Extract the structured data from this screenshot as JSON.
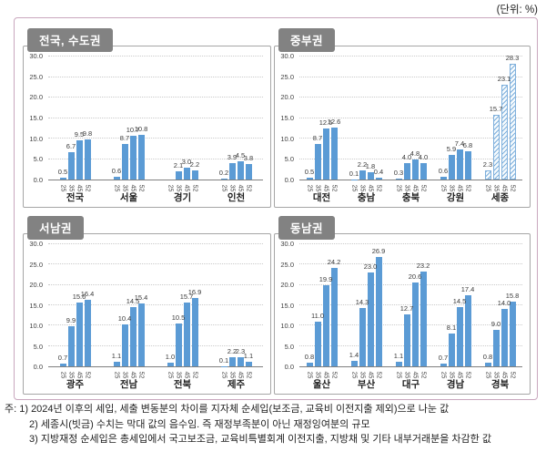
{
  "unit_label": "(단위: %)",
  "colors": {
    "bar": "#5B9BD5",
    "hatch_stripe": "#7FB0DC",
    "hatch_bg": "#F5FAFD",
    "tab_bg": "#828282",
    "frame_border": "#C9A7BE"
  },
  "axis": {
    "y_ticks": [
      "30.0",
      "25.0",
      "20.0",
      "15.0",
      "10.0",
      "5.0",
      "0.0"
    ],
    "y_max": 30,
    "x_categories": [
      "25",
      "35",
      "45",
      "52"
    ]
  },
  "chart_data": [
    {
      "type": "bar",
      "title": "전국, 수도권",
      "ylim": [
        0,
        30
      ],
      "categories": [
        "25",
        "35",
        "45",
        "52"
      ],
      "groups": [
        {
          "name": "전국",
          "values": [
            0.5,
            6.7,
            9.5,
            9.8
          ]
        },
        {
          "name": "서울",
          "values": [
            0.6,
            8.7,
            10.7,
            10.8
          ]
        },
        {
          "name": "경기",
          "values": [
            null,
            2.1,
            3.0,
            2.2
          ]
        },
        {
          "name": "인천",
          "values": [
            0.2,
            3.9,
            4.5,
            3.8
          ]
        }
      ]
    },
    {
      "type": "bar",
      "title": "중부권",
      "ylim": [
        0,
        30
      ],
      "categories": [
        "25",
        "35",
        "45",
        "52"
      ],
      "groups": [
        {
          "name": "대전",
          "values": [
            0.5,
            8.7,
            12.5,
            12.6
          ]
        },
        {
          "name": "충남",
          "values": [
            0.1,
            2.2,
            1.8,
            0.4
          ]
        },
        {
          "name": "충북",
          "values": [
            0.3,
            4.0,
            4.8,
            4.0
          ]
        },
        {
          "name": "강원",
          "values": [
            0.6,
            5.9,
            7.4,
            6.8
          ]
        },
        {
          "name": "세종",
          "values": [
            2.3,
            15.7,
            23.1,
            28.3
          ],
          "hatched": true
        }
      ]
    },
    {
      "type": "bar",
      "title": "서남권",
      "ylim": [
        0,
        30
      ],
      "categories": [
        "25",
        "35",
        "45",
        "52"
      ],
      "groups": [
        {
          "name": "광주",
          "values": [
            0.7,
            9.9,
            15.6,
            16.4
          ]
        },
        {
          "name": "전남",
          "values": [
            1.1,
            10.4,
            14.5,
            15.4
          ]
        },
        {
          "name": "전북",
          "values": [
            1.0,
            10.5,
            15.7,
            16.9
          ]
        },
        {
          "name": "제주",
          "values": [
            0.1,
            2.2,
            2.3,
            1.1
          ]
        }
      ]
    },
    {
      "type": "bar",
      "title": "동남권",
      "ylim": [
        0,
        30
      ],
      "categories": [
        "25",
        "35",
        "45",
        "52"
      ],
      "groups": [
        {
          "name": "울산",
          "values": [
            0.8,
            11.0,
            19.9,
            24.2
          ]
        },
        {
          "name": "부산",
          "values": [
            1.4,
            14.3,
            23.0,
            26.9
          ]
        },
        {
          "name": "대구",
          "values": [
            1.1,
            12.7,
            20.6,
            23.2
          ]
        },
        {
          "name": "경남",
          "values": [
            0.7,
            8.1,
            14.5,
            17.4
          ]
        },
        {
          "name": "경북",
          "values": [
            0.8,
            9.0,
            14.0,
            15.8
          ]
        }
      ]
    }
  ],
  "footnotes": {
    "line1": "주: 1) 2024년 이후의 세입, 세출 변동분의 차이를 지자체 순세입(보조금, 교육비 이전지출 제외)으로 나눈 값",
    "line2": "2) 세종시(빗금) 수치는 막대 값의 음수임. 즉 재정부족분이 아닌 재정잉여분의 규모",
    "line3": "3) 지방재정 순세입은 총세입에서 국고보조금, 교육비특별회계 이전지출, 지방채 및 기타 내부거래분을 차감한 값"
  }
}
